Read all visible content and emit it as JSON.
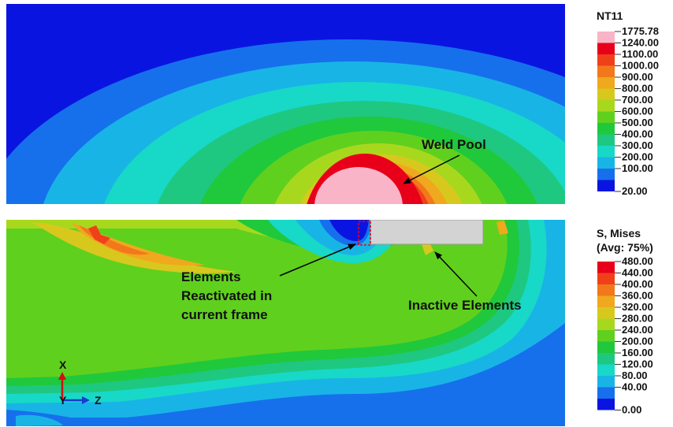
{
  "top_panel": {
    "annotation": "Weld Pool"
  },
  "bottom_panel": {
    "annotation_reactivated": [
      "Elements",
      "Reactivated in",
      "current frame"
    ],
    "annotation_inactive": "Inactive Elements"
  },
  "triad": {
    "x_label": "X",
    "y_label": "Y",
    "z_label": "Z"
  },
  "legend_temp": {
    "title": "NT11",
    "values": [
      "1775.78",
      "1240.00",
      "1100.00",
      "1000.00",
      "900.00",
      "800.00",
      "700.00",
      "600.00",
      "500.00",
      "400.00",
      "300.00",
      "200.00",
      "100.00",
      "20.00"
    ],
    "colors": [
      "#f9b4c8",
      "#e8001a",
      "#f0401a",
      "#f2781c",
      "#f0a81e",
      "#d8c81e",
      "#a8d81e",
      "#60d01e",
      "#20c83c",
      "#1ec880",
      "#18d8c8",
      "#18b4e6",
      "#1670ec",
      "#0a14e0"
    ]
  },
  "legend_stress": {
    "title": [
      "S, Mises",
      "(Avg: 75%)"
    ],
    "values": [
      "480.00",
      "440.00",
      "400.00",
      "360.00",
      "320.00",
      "280.00",
      "240.00",
      "200.00",
      "160.00",
      "120.00",
      "80.00",
      "40.00",
      "0.00"
    ],
    "colors": [
      "#e8001a",
      "#f0401a",
      "#f2781c",
      "#f0a81e",
      "#d8c81e",
      "#a8d81e",
      "#60d01e",
      "#20c83c",
      "#1ec880",
      "#18d8c8",
      "#18b4e6",
      "#1670ec",
      "#0a14e0"
    ]
  }
}
